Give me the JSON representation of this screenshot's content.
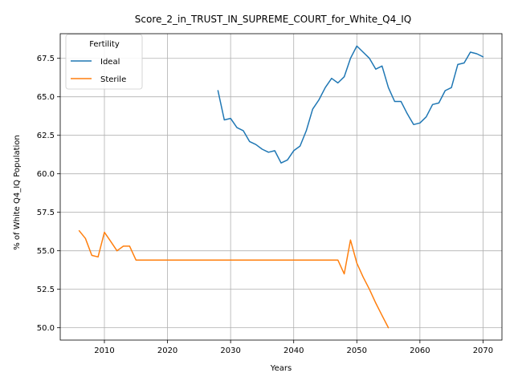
{
  "chart_data": {
    "type": "line",
    "title": "Score_2_in_TRUST_IN_SUPREME_COURT_for_White_Q4_IQ",
    "xlabel": "Years",
    "ylabel": "% of White Q4_IQ Population",
    "xlim": [
      2003,
      2073
    ],
    "ylim": [
      49.2,
      69.1
    ],
    "xticks": [
      2010,
      2020,
      2030,
      2040,
      2050,
      2060,
      2070
    ],
    "yticks": [
      50.0,
      52.5,
      55.0,
      57.5,
      60.0,
      62.5,
      65.0,
      67.5
    ],
    "xtick_labels": [
      "2010",
      "2020",
      "2030",
      "2040",
      "2050",
      "2060",
      "2070"
    ],
    "ytick_labels": [
      "50.0",
      "52.5",
      "55.0",
      "57.5",
      "60.0",
      "62.5",
      "65.0",
      "67.5"
    ],
    "grid": true,
    "legend": {
      "title": "Fertility",
      "position": "top-left"
    },
    "series": [
      {
        "name": "Ideal",
        "color": "#1f77b4",
        "x": [
          2028,
          2029,
          2030,
          2031,
          2032,
          2033,
          2034,
          2035,
          2036,
          2037,
          2038,
          2039,
          2040,
          2041,
          2042,
          2043,
          2044,
          2045,
          2046,
          2047,
          2048,
          2049,
          2050,
          2051,
          2052,
          2053,
          2054,
          2055,
          2056,
          2057,
          2058,
          2059,
          2060,
          2061,
          2062,
          2063,
          2064,
          2065,
          2066,
          2067,
          2068,
          2069,
          2070
        ],
        "y": [
          65.4,
          63.5,
          63.6,
          63.0,
          62.8,
          62.1,
          61.9,
          61.6,
          61.4,
          61.5,
          60.7,
          60.9,
          61.5,
          61.8,
          62.8,
          64.2,
          64.8,
          65.6,
          66.2,
          65.9,
          66.3,
          67.5,
          68.3,
          67.9,
          67.5,
          66.8,
          67.0,
          65.6,
          64.7,
          64.7,
          63.9,
          63.2,
          63.3,
          63.7,
          64.5,
          64.6,
          65.4,
          65.6,
          67.1,
          67.2,
          67.9,
          67.8,
          67.6
        ]
      },
      {
        "name": "Sterile",
        "color": "#ff7f0e",
        "x": [
          2006,
          2007,
          2008,
          2009,
          2010,
          2011,
          2012,
          2013,
          2014,
          2015,
          2016,
          2020,
          2025,
          2030,
          2035,
          2040,
          2045,
          2047,
          2048,
          2049,
          2050,
          2051,
          2052,
          2053,
          2054,
          2055
        ],
        "y": [
          56.3,
          55.8,
          54.7,
          54.6,
          56.2,
          55.6,
          55.0,
          55.3,
          55.3,
          54.4,
          54.4,
          54.4,
          54.4,
          54.4,
          54.4,
          54.4,
          54.4,
          54.4,
          53.5,
          55.7,
          54.2,
          53.3,
          52.5,
          51.6,
          50.8,
          50.0
        ]
      }
    ]
  }
}
